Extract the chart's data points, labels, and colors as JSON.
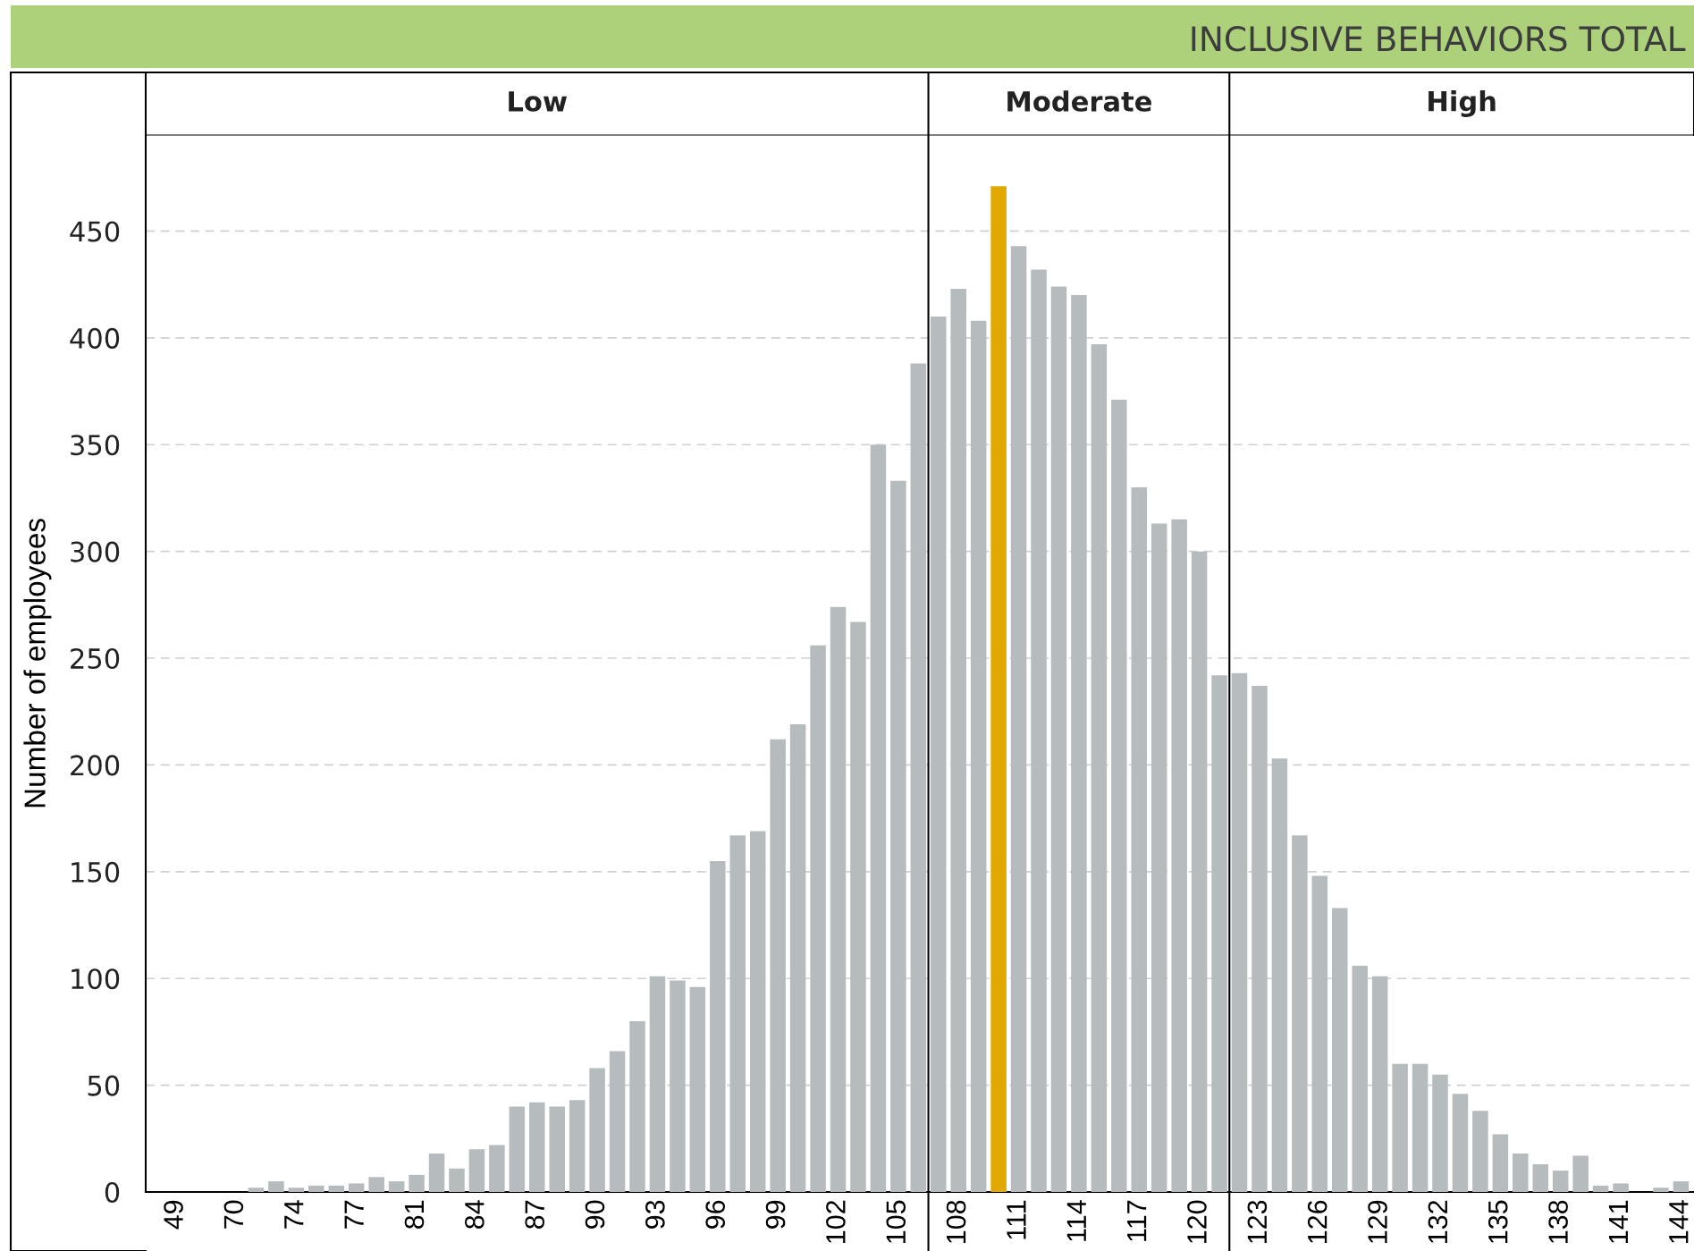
{
  "chart_data": {
    "type": "bar",
    "title": "INCLUSIVE BEHAVIORS TOTAL",
    "ylabel": "Number of employees",
    "categories": [
      "49",
      null,
      null,
      "70",
      null,
      null,
      "74",
      null,
      null,
      "77",
      null,
      null,
      "81",
      null,
      null,
      "84",
      null,
      null,
      "87",
      null,
      null,
      "90",
      null,
      null,
      "93",
      null,
      null,
      "96",
      null,
      null,
      "99",
      null,
      null,
      "102",
      null,
      null,
      "105",
      null,
      null,
      "108",
      null,
      null,
      "111",
      null,
      null,
      "114",
      null,
      null,
      "117",
      null,
      null,
      "120",
      null,
      null,
      "123",
      null,
      null,
      "126",
      null,
      null,
      "129",
      null,
      null,
      "132",
      null,
      null,
      "135",
      null,
      null,
      "138",
      null,
      null,
      "141",
      null,
      null,
      "144"
    ],
    "values": [
      0,
      0,
      0,
      0,
      2,
      5,
      2,
      3,
      3,
      4,
      7,
      5,
      8,
      18,
      11,
      20,
      22,
      40,
      42,
      40,
      43,
      58,
      66,
      80,
      101,
      99,
      96,
      155,
      167,
      169,
      212,
      219,
      256,
      274,
      267,
      350,
      333,
      388,
      410,
      423,
      408,
      471,
      443,
      432,
      424,
      420,
      397,
      371,
      330,
      313,
      315,
      300,
      242,
      243,
      237,
      203,
      167,
      148,
      133,
      106,
      101,
      60,
      60,
      55,
      46,
      38,
      27,
      18,
      13,
      10,
      17,
      3,
      4,
      0,
      2,
      5
    ],
    "colors": [
      "#b6bbbd",
      "#b6bbbd",
      "#b6bbbd",
      "#b6bbbd",
      "#b6bbbd",
      "#b6bbbd",
      "#b6bbbd",
      "#b6bbbd",
      "#b6bbbd",
      "#b6bbbd",
      "#b6bbbd",
      "#b6bbbd",
      "#b6bbbd",
      "#b6bbbd",
      "#b6bbbd",
      "#b6bbbd",
      "#b6bbbd",
      "#b6bbbd",
      "#b6bbbd",
      "#b6bbbd",
      "#b6bbbd",
      "#b6bbbd",
      "#b6bbbd",
      "#b6bbbd",
      "#b6bbbd",
      "#b6bbbd",
      "#b6bbbd",
      "#b6bbbd",
      "#b6bbbd",
      "#b6bbbd",
      "#b6bbbd",
      "#b6bbbd",
      "#b6bbbd",
      "#b6bbbd",
      "#b6bbbd",
      "#b6bbbd",
      "#b6bbbd",
      "#b6bbbd",
      "#b6bbbd",
      "#b6bbbd",
      "#b6bbbd",
      "#e0a800",
      "#b6bbbd",
      "#b6bbbd",
      "#b6bbbd",
      "#b6bbbd",
      "#b6bbbd",
      "#b6bbbd",
      "#b6bbbd",
      "#b6bbbd",
      "#b6bbbd",
      "#b6bbbd",
      "#b6bbbd",
      "#b6bbbd",
      "#b6bbbd",
      "#b6bbbd",
      "#b6bbbd",
      "#b6bbbd",
      "#b6bbbd",
      "#b6bbbd",
      "#b6bbbd",
      "#b6bbbd",
      "#b6bbbd",
      "#b6bbbd",
      "#b6bbbd",
      "#b6bbbd",
      "#b6bbbd",
      "#b6bbbd",
      "#b6bbbd",
      "#b6bbbd",
      "#b6bbbd",
      "#b6bbbd",
      "#b6bbbd",
      "#b6bbbd",
      "#b6bbbd",
      "#b6bbbd"
    ],
    "ylim": [
      0,
      495
    ],
    "yticks": [
      0,
      50,
      100,
      150,
      200,
      250,
      300,
      350,
      400,
      450
    ],
    "grid": "y",
    "annotations": [
      "Low",
      "Moderate",
      "High"
    ]
  }
}
